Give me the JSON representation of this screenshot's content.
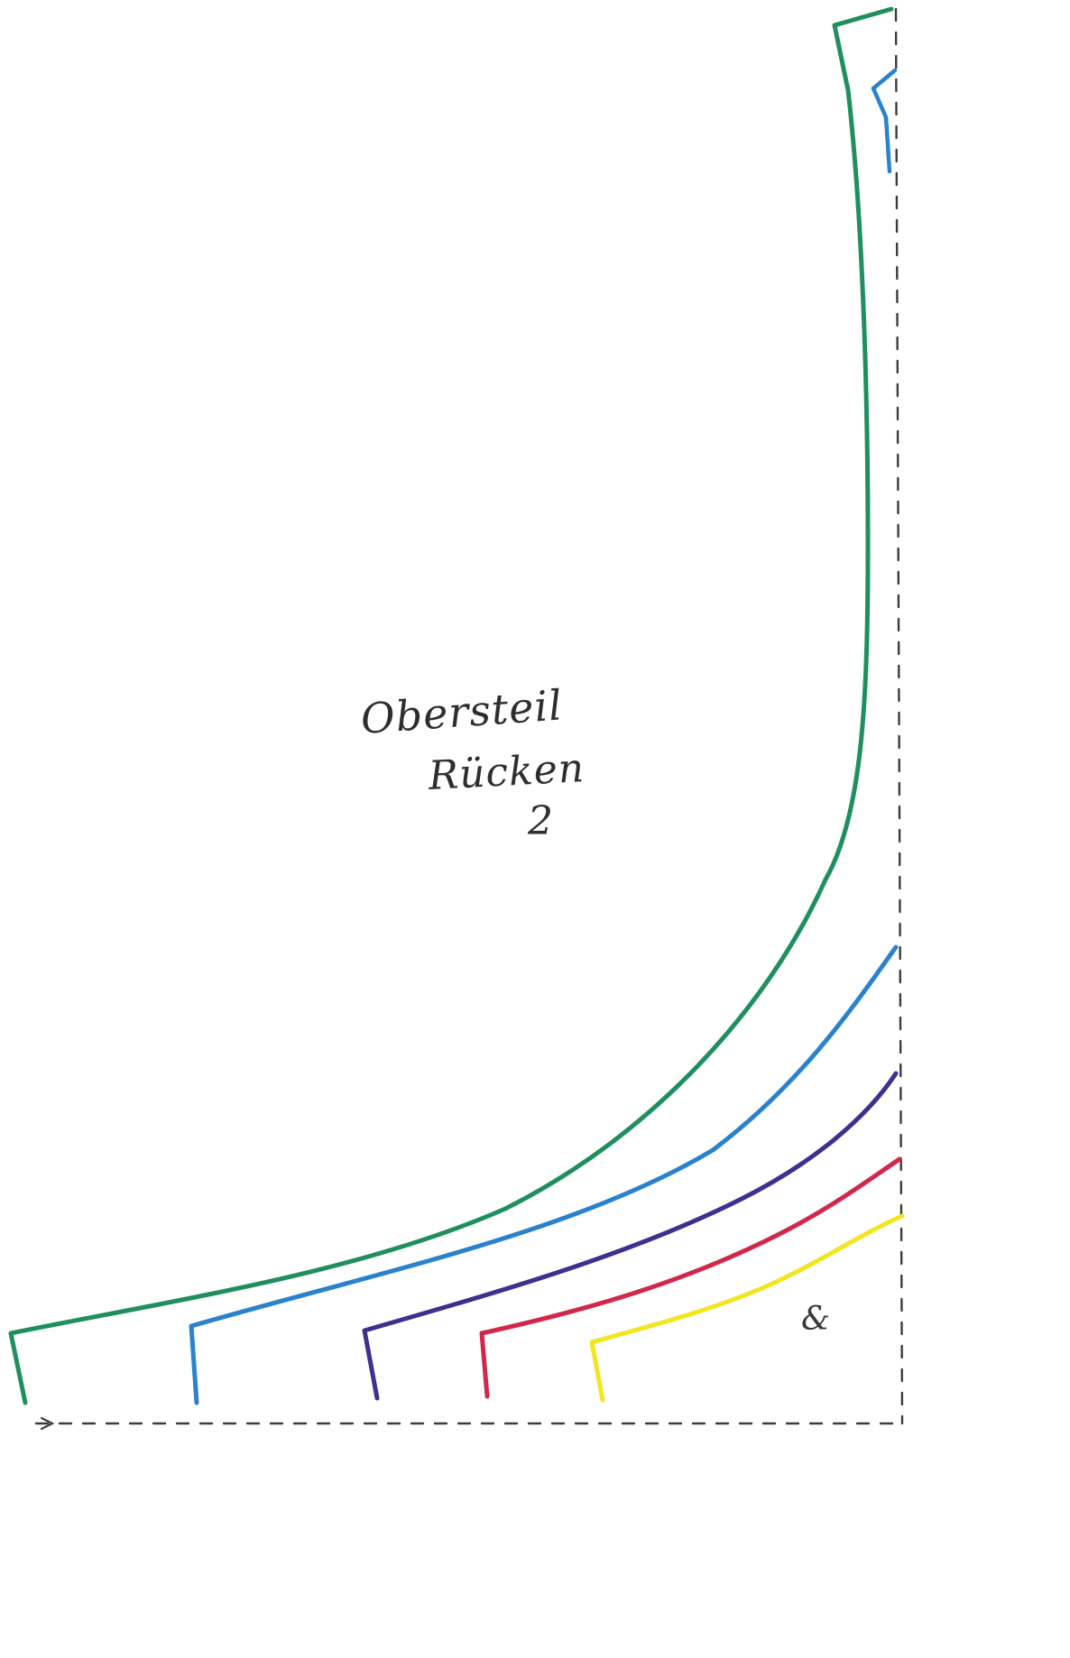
{
  "pattern_piece": {
    "title_line_1": "Obersteil",
    "title_line_2": "Rücken",
    "piece_number": "2",
    "corner_mark": "&"
  },
  "size_lines": {
    "colors": [
      "#1f8f5f",
      "#2a82cc",
      "#3f2f8f",
      "#d0284a",
      "#f2e620"
    ],
    "names": [
      "green",
      "blue",
      "purple",
      "red",
      "yellow"
    ]
  },
  "fold_line": {
    "color": "#3c3c3c",
    "style": "dashed"
  }
}
